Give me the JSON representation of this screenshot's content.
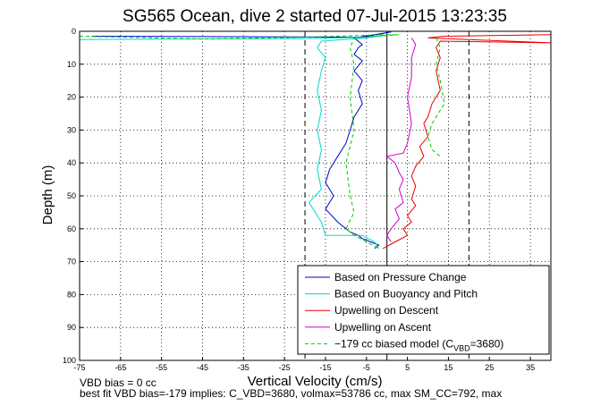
{
  "chart_data": {
    "type": "line",
    "title": "SG565 Ocean, dive 2 started 07-Jul-2015 13:23:35",
    "xlabel": "Vertical Velocity (cm/s)",
    "ylabel": "Depth (m)",
    "xlim": [
      -75,
      40
    ],
    "ylim": [
      0,
      100
    ],
    "y_reversed": true,
    "grid": true,
    "x_ticks": [
      -75,
      -65,
      -55,
      -45,
      -35,
      -25,
      -15,
      -5,
      5,
      15,
      25,
      35
    ],
    "y_ticks": [
      0,
      10,
      20,
      30,
      40,
      50,
      60,
      70,
      80,
      90,
      100
    ],
    "legend_position": "bottom-right",
    "reference_lines": [
      {
        "x": -20,
        "style": "dashed",
        "color": "#000000"
      },
      {
        "x": 0,
        "style": "solid",
        "color": "#000000"
      },
      {
        "x": 20,
        "style": "dashed",
        "color": "#000000"
      }
    ],
    "series": [
      {
        "name": "Based on Pressure Change",
        "color": "#0000cc",
        "style": "solid",
        "points": [
          [
            -72,
            1.5
          ],
          [
            -6,
            1.8
          ],
          [
            1,
            0.2
          ],
          [
            -3,
            1
          ],
          [
            -8,
            2
          ],
          [
            -6,
            4
          ],
          [
            -7,
            5
          ],
          [
            -8,
            7
          ],
          [
            -6,
            9
          ],
          [
            -8,
            12
          ],
          [
            -6,
            15
          ],
          [
            -7,
            18
          ],
          [
            -6,
            22
          ],
          [
            -8,
            26
          ],
          [
            -9,
            30
          ],
          [
            -10,
            34
          ],
          [
            -12,
            38
          ],
          [
            -14,
            42
          ],
          [
            -15,
            46
          ],
          [
            -13,
            50
          ],
          [
            -15,
            54
          ],
          [
            -12,
            58
          ],
          [
            -9,
            61
          ],
          [
            -7,
            62
          ],
          [
            -6,
            63
          ],
          [
            -4,
            64
          ],
          [
            -2,
            65
          ],
          [
            -3,
            66
          ]
        ]
      },
      {
        "name": "Based on Buoyancy and Pitch",
        "color": "#00d8d0",
        "style": "solid",
        "points": [
          [
            -75,
            2.5
          ],
          [
            -20,
            2.2
          ],
          [
            -5,
            1.8
          ],
          [
            1,
            1
          ],
          [
            -5,
            2
          ],
          [
            -16,
            3
          ],
          [
            -17,
            5
          ],
          [
            -15,
            8
          ],
          [
            -16,
            12
          ],
          [
            -17,
            18
          ],
          [
            -16,
            24
          ],
          [
            -17,
            30
          ],
          [
            -16,
            36
          ],
          [
            -17,
            42
          ],
          [
            -16,
            48
          ],
          [
            -19,
            52
          ],
          [
            -17,
            56
          ],
          [
            -16,
            58
          ],
          [
            -15,
            62
          ],
          [
            -6,
            62
          ],
          [
            -3,
            64
          ],
          [
            -2,
            66
          ]
        ]
      },
      {
        "name": "Upwelling on Descent",
        "color": "#e80000",
        "style": "solid",
        "points": [
          [
            40,
            1
          ],
          [
            14,
            1.5
          ],
          [
            10,
            2
          ],
          [
            40,
            3.5
          ],
          [
            13,
            3
          ],
          [
            12,
            5
          ],
          [
            13,
            8
          ],
          [
            12,
            12
          ],
          [
            13,
            18
          ],
          [
            11,
            22
          ],
          [
            10,
            26
          ],
          [
            9,
            28
          ],
          [
            10,
            32
          ],
          [
            8,
            35
          ],
          [
            9,
            38
          ],
          [
            7,
            41
          ],
          [
            6,
            44
          ],
          [
            7,
            47
          ],
          [
            6,
            51
          ],
          [
            7,
            53
          ],
          [
            5,
            56
          ],
          [
            6,
            58
          ],
          [
            4,
            60
          ],
          [
            5,
            62
          ],
          [
            2,
            64
          ],
          [
            -1,
            66
          ]
        ]
      },
      {
        "name": "Upwelling on Ascent",
        "color": "#d000d0",
        "style": "solid",
        "points": [
          [
            6,
            2
          ],
          [
            7,
            4
          ],
          [
            6,
            8
          ],
          [
            6,
            14
          ],
          [
            5,
            20
          ],
          [
            6,
            28
          ],
          [
            5,
            34
          ],
          [
            4,
            37
          ],
          [
            0,
            38
          ],
          [
            2,
            40
          ],
          [
            3,
            43
          ],
          [
            4,
            45
          ],
          [
            3,
            48
          ],
          [
            4,
            52
          ],
          [
            2,
            54
          ],
          [
            3,
            57
          ],
          [
            1,
            60
          ],
          [
            0,
            62
          ],
          [
            1,
            64
          ]
        ]
      },
      {
        "name": "−179 cc biased model (C_VBD=3680)",
        "color": "#00cc00",
        "style": "dashed",
        "points": [
          [
            -75,
            1.5
          ],
          [
            -45,
            2.3
          ],
          [
            -20,
            1.8
          ],
          [
            -5,
            1.2
          ],
          [
            3,
            1
          ],
          [
            -8,
            2
          ],
          [
            -9,
            5
          ],
          [
            -8,
            10
          ],
          [
            -9,
            20
          ],
          [
            -8,
            30
          ],
          [
            -10,
            40
          ],
          [
            -9,
            50
          ],
          [
            -8,
            55
          ],
          [
            -10,
            60
          ],
          [
            -8,
            62
          ],
          [
            -5,
            64
          ],
          [
            -2,
            66
          ]
        ]
      },
      {
        "name": "",
        "color": "#00cc00",
        "style": "dashed",
        "points": [
          [
            12,
            2
          ],
          [
            13,
            5
          ],
          [
            12,
            10
          ],
          [
            13,
            15
          ],
          [
            14,
            22
          ],
          [
            12,
            26
          ],
          [
            11,
            28
          ],
          [
            10,
            32
          ],
          [
            11,
            36
          ],
          [
            13,
            38
          ]
        ]
      }
    ],
    "annotations": [
      "VBD bias = 0 cc",
      "best fit VBD bias=-179 implies: C_VBD=3680, volmax=53786 cc, max SM_CC=792, max"
    ]
  },
  "legend": [
    {
      "label": "Based on Pressure Change",
      "color": "#0000cc",
      "dash": false
    },
    {
      "label": "Based on Buoyancy and Pitch",
      "color": "#00d8d0",
      "dash": false
    },
    {
      "label": "Upwelling on Descent",
      "color": "#e80000",
      "dash": false
    },
    {
      "label": "Upwelling on Ascent",
      "color": "#d000d0",
      "dash": false
    },
    {
      "label": "−179 cc biased model (C",
      "sub": "VBD",
      "suffix": "=3680)",
      "color": "#00cc00",
      "dash": true
    }
  ]
}
